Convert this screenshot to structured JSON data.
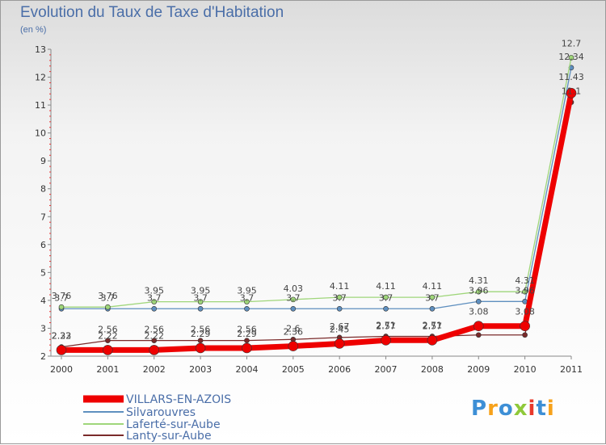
{
  "title": "Evolution du Taux de Taxe d'Habitation",
  "subtitle": "(en %)",
  "brand": {
    "letters": [
      "P",
      "r",
      "o",
      "x",
      "i",
      "t",
      "i"
    ],
    "colors": [
      "#3d8fd6",
      "#f7a21b",
      "#3d8fd6",
      "#8fc93a",
      "#e8392b",
      "#3d8fd6",
      "#f7a21b"
    ]
  },
  "chart_data": {
    "type": "line",
    "categories": [
      "2000",
      "2001",
      "2002",
      "2003",
      "2004",
      "2005",
      "2006",
      "2007",
      "2008",
      "2009",
      "2010",
      "2011"
    ],
    "yticks": [
      "2",
      "3",
      "4",
      "5",
      "6",
      "7",
      "8",
      "9",
      "10",
      "11",
      "12",
      "13"
    ],
    "ylim": [
      2,
      13
    ],
    "grid": false,
    "legend_position": "bottom-left",
    "series": [
      {
        "name": "Lanty-sur-Aube",
        "color": "#7a2a2a",
        "width": 1.3,
        "marker": 3,
        "values": [
          2.33,
          2.56,
          2.56,
          2.56,
          2.56,
          2.6,
          2.67,
          2.71,
          2.71,
          2.76,
          2.76,
          11.1
        ],
        "labels": [
          "2.33",
          "2.56",
          "2.56",
          "2.56",
          "2.56",
          "2.6",
          "2.67",
          "2.71",
          "2.71",
          "",
          "",
          "11.1"
        ],
        "label_dy": [
          -10,
          -10,
          -10,
          -10,
          -10,
          -10,
          -10,
          -10,
          -10,
          0,
          0,
          -10
        ]
      },
      {
        "name": "Silvarouvres",
        "color": "#5e8fbf",
        "width": 1.3,
        "marker": 3,
        "values": [
          3.7,
          3.7,
          3.7,
          3.7,
          3.7,
          3.7,
          3.7,
          3.7,
          3.7,
          3.96,
          3.96,
          12.34
        ],
        "labels": [
          "3.7",
          "3.7",
          "3.7",
          "3.7",
          "3.7",
          "3.7",
          "3.7",
          "3.7",
          "3.7",
          "3.96",
          "3.96",
          "12.34"
        ],
        "label_dy": [
          -10,
          -10,
          -10,
          -10,
          -10,
          -10,
          -10,
          -10,
          -10,
          -10,
          -10,
          -10
        ]
      },
      {
        "name": "Laferté-sur-Aube",
        "color": "#9fd67a",
        "width": 1.3,
        "marker": 3,
        "values": [
          3.76,
          3.76,
          3.95,
          3.95,
          3.95,
          4.03,
          4.11,
          4.11,
          4.11,
          4.31,
          4.31,
          12.7
        ],
        "labels": [
          "3.76",
          "3.76",
          "3.95",
          "3.95",
          "3.95",
          "4.03",
          "4.11",
          "4.11",
          "4.11",
          "4.31",
          "4.31",
          "12.7"
        ],
        "label_dy": [
          -10,
          -10,
          -10,
          -10,
          -10,
          -10,
          -10,
          -10,
          -10,
          -10,
          -10,
          -14
        ]
      },
      {
        "name": "VILLARS-EN-AZOIS",
        "color": "#ee0000",
        "width": 7,
        "marker": 6,
        "values": [
          2.22,
          2.22,
          2.22,
          2.29,
          2.29,
          2.36,
          2.45,
          2.57,
          2.57,
          3.08,
          3.08,
          11.43
        ],
        "labels": [
          "2.22",
          "2.22",
          "2.22",
          "2.29",
          "2.29",
          "2.36",
          "2.45",
          "2.57",
          "2.57",
          "3.08",
          "3.08",
          "11.43"
        ],
        "label_dy": [
          -14,
          -14,
          -14,
          -14,
          -14,
          -14,
          -14,
          -14,
          -14,
          -14,
          -14,
          -16
        ]
      }
    ],
    "legend": [
      "VILLARS-EN-AZOIS",
      "Silvarouvres",
      "Laferté-sur-Aube",
      "Lanty-sur-Aube"
    ]
  }
}
